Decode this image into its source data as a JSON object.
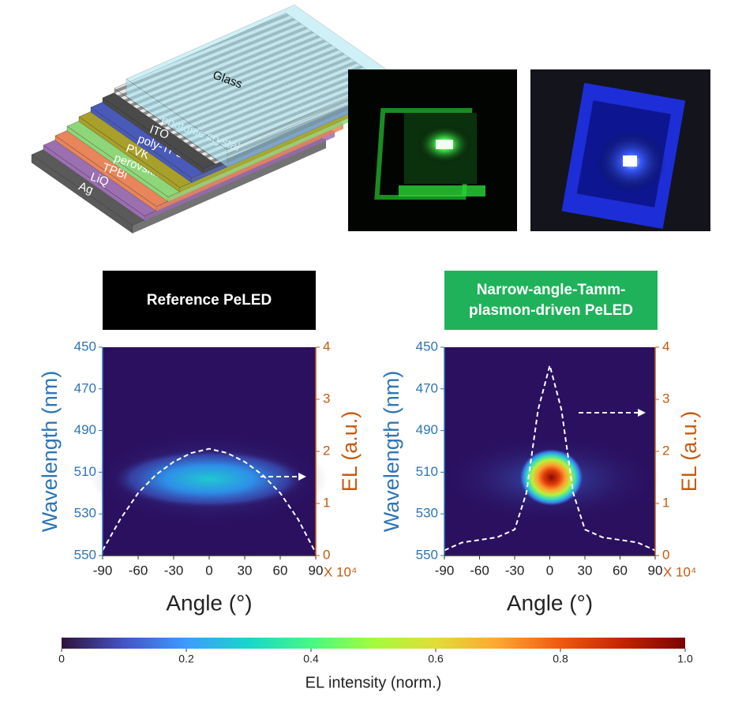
{
  "stack_layers": [
    "Glass",
    "photonic crystal",
    "ITO",
    "poly-TPD",
    "PVK",
    "perovskite",
    "TPBi",
    "LiQ",
    "Ag"
  ],
  "chart_data": [
    {
      "type": "heatmap",
      "title": "Reference PeLED",
      "title_color": "#000000",
      "xlabel": "Angle (°)",
      "ylabel": "Wavelength (nm)",
      "y2label": "EL (a.u.)",
      "y2_scale_label": "X 10⁴",
      "xlim": [
        -90,
        90
      ],
      "xticks": [
        -90,
        -60,
        -30,
        0,
        30,
        60,
        90
      ],
      "ylim": [
        550,
        450
      ],
      "yticks": [
        450,
        470,
        490,
        510,
        530,
        550
      ],
      "y2lim": [
        0,
        4
      ],
      "y2ticks": [
        0,
        1,
        2,
        3,
        4
      ],
      "x": [
        -90,
        -75,
        -60,
        -45,
        -30,
        -15,
        0,
        15,
        30,
        45,
        60,
        75,
        90
      ],
      "values": [
        0.1,
        0.7,
        1.2,
        1.55,
        1.8,
        1.97,
        2.05,
        1.97,
        1.8,
        1.55,
        1.2,
        0.7,
        0.05
      ],
      "axis": "y2",
      "line_color": "#ffffff"
    },
    {
      "type": "heatmap",
      "title": "Narrow-angle-Tamm-plasmon-driven PeLED",
      "title_color": "#1fb25a",
      "xlabel": "Angle (°)",
      "ylabel": "Wavelength (nm)",
      "y2label": "EL (a.u.)",
      "y2_scale_label": "X 10⁴",
      "xlim": [
        -90,
        90
      ],
      "xticks": [
        -90,
        -60,
        -30,
        0,
        30,
        60,
        90
      ],
      "ylim": [
        550,
        450
      ],
      "yticks": [
        450,
        470,
        490,
        510,
        530,
        550
      ],
      "y2lim": [
        0,
        4
      ],
      "y2ticks": [
        0,
        1,
        2,
        3,
        4
      ],
      "x": [
        -90,
        -75,
        -60,
        -45,
        -30,
        -20,
        -10,
        0,
        10,
        20,
        30,
        45,
        60,
        75,
        90
      ],
      "values": [
        0.1,
        0.25,
        0.3,
        0.35,
        0.5,
        1.2,
        2.8,
        3.65,
        2.8,
        1.2,
        0.5,
        0.35,
        0.3,
        0.25,
        0.1
      ],
      "axis": "y2",
      "line_color": "#ffffff"
    }
  ],
  "colorbar": {
    "label": "EL intensity (norm.)",
    "ticks": [
      0,
      0.2,
      0.4,
      0.6,
      0.8,
      {
        "value": 1,
        "label": "1.0"
      }
    ],
    "lim": [
      0,
      1
    ]
  }
}
